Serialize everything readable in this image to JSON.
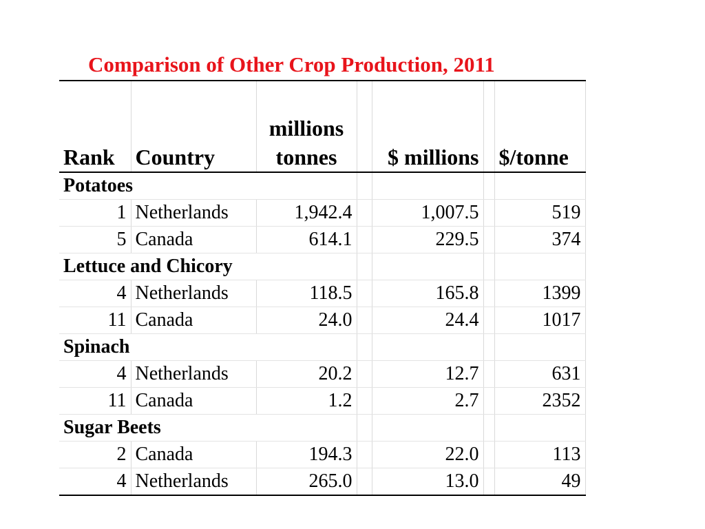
{
  "title": "Comparison of Other Crop Production, 2011",
  "headers": {
    "rank": "Rank",
    "country": "Country",
    "tonnes": "millions tonnes",
    "millions": "$ millions",
    "per_tonne": "$/tonne"
  },
  "groups": [
    {
      "name": "Potatoes",
      "rows": [
        {
          "rank": "1",
          "country": "Netherlands",
          "tonnes": "1,942.4",
          "millions": "1,007.5",
          "per_tonne": "519"
        },
        {
          "rank": "5",
          "country": "Canada",
          "tonnes": "614.1",
          "millions": "229.5",
          "per_tonne": "374"
        }
      ]
    },
    {
      "name": "Lettuce and Chicory",
      "rows": [
        {
          "rank": "4",
          "country": "Netherlands",
          "tonnes": "118.5",
          "millions": "165.8",
          "per_tonne": "1399"
        },
        {
          "rank": "11",
          "country": "Canada",
          "tonnes": "24.0",
          "millions": "24.4",
          "per_tonne": "1017"
        }
      ]
    },
    {
      "name": "Spinach",
      "rows": [
        {
          "rank": "4",
          "country": "Netherlands",
          "tonnes": "20.2",
          "millions": "12.7",
          "per_tonne": "631"
        },
        {
          "rank": "11",
          "country": "Canada",
          "tonnes": "1.2",
          "millions": "2.7",
          "per_tonne": "2352"
        }
      ]
    },
    {
      "name": "Sugar Beets",
      "rows": [
        {
          "rank": "2",
          "country": "Canada",
          "tonnes": "194.3",
          "millions": "22.0",
          "per_tonne": "113"
        },
        {
          "rank": "4",
          "country": "Netherlands",
          "tonnes": "265.0",
          "millions": "13.0",
          "per_tonne": "49"
        }
      ]
    }
  ]
}
